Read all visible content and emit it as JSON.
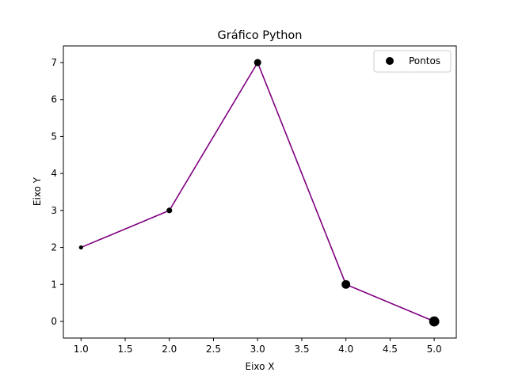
{
  "chart_data": {
    "type": "line",
    "title": "Gráfico Python",
    "xlabel": "Eixo X",
    "ylabel": "Eixo Y",
    "x": [
      1,
      2,
      3,
      4,
      5
    ],
    "y": [
      2,
      3,
      7,
      1,
      0
    ],
    "marker_scale": [
      1,
      2,
      3,
      4,
      5
    ],
    "xlim": [
      0.8,
      5.25
    ],
    "ylim": [
      -0.45,
      7.45
    ],
    "xticks": [
      1.0,
      1.5,
      2.0,
      2.5,
      3.0,
      3.5,
      4.0,
      4.5,
      5.0
    ],
    "xtick_labels": [
      "1.0",
      "1.5",
      "2.0",
      "2.5",
      "3.0",
      "3.5",
      "4.0",
      "4.5",
      "5.0"
    ],
    "yticks": [
      0,
      1,
      2,
      3,
      4,
      5,
      6,
      7
    ],
    "ytick_labels": [
      "0",
      "1",
      "2",
      "3",
      "4",
      "5",
      "6",
      "7"
    ],
    "legend": {
      "entries": [
        "Pontos"
      ],
      "placement": "top-right"
    },
    "line_color": "#800080",
    "marker_color": "#000000",
    "grid": false
  }
}
